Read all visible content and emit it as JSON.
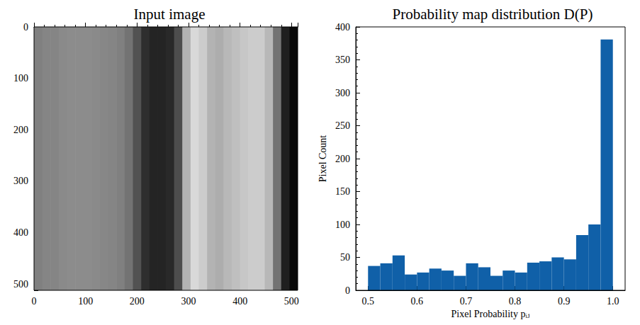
{
  "chart_data": [
    {
      "type": "image",
      "title": "Input image",
      "x_bins": [
        0,
        16,
        32,
        48,
        64,
        80,
        96,
        112,
        128,
        144,
        160,
        176,
        192,
        208,
        224,
        240,
        256,
        272,
        288,
        304,
        320,
        336,
        352,
        368,
        384,
        400,
        416,
        432,
        448,
        464,
        480,
        496,
        512
      ],
      "intensity": [
        0.5,
        0.52,
        0.52,
        0.54,
        0.55,
        0.55,
        0.55,
        0.54,
        0.53,
        0.52,
        0.5,
        0.45,
        0.32,
        0.18,
        0.14,
        0.14,
        0.16,
        0.3,
        0.7,
        0.85,
        0.8,
        0.7,
        0.68,
        0.72,
        0.75,
        0.78,
        0.8,
        0.8,
        0.72,
        0.45,
        0.12,
        0.03
      ],
      "intensity_range": [
        0,
        1
      ],
      "xlim": [
        0,
        512
      ],
      "xticks": [
        0,
        100,
        200,
        300,
        400,
        500
      ],
      "ylim": [
        512,
        0
      ],
      "yticks": [
        0,
        100,
        200,
        300,
        400,
        500
      ]
    },
    {
      "type": "histogram",
      "title": "Probability map distribution D(P)",
      "x_label": "Pixel Probability pᵢⱼ",
      "y_label": "Pixel Count",
      "bins": [
        0.5,
        0.525,
        0.55,
        0.575,
        0.6,
        0.625,
        0.65,
        0.675,
        0.7,
        0.725,
        0.75,
        0.775,
        0.8,
        0.825,
        0.85,
        0.875,
        0.9,
        0.925,
        0.95,
        0.975,
        1.0
      ],
      "values": [
        37,
        41,
        53,
        24,
        27,
        33,
        30,
        22,
        41,
        35,
        22,
        30,
        27,
        42,
        44,
        50,
        47,
        84,
        100,
        381
      ],
      "color": "#1060a8",
      "xlim": [
        0.475,
        1.025
      ],
      "xticks": [
        0.5,
        0.6,
        0.7,
        0.8,
        0.9,
        {
          "value": 1,
          "label": "1.0"
        }
      ],
      "ylim": [
        0,
        400
      ],
      "yticks": [
        0,
        50,
        100,
        150,
        200,
        250,
        300,
        350,
        400
      ]
    }
  ]
}
